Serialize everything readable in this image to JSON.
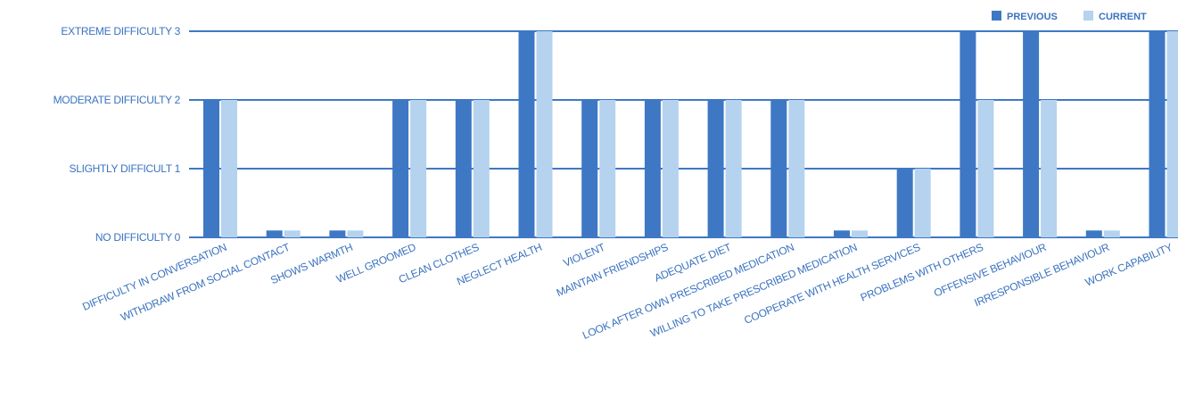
{
  "chart_data": {
    "type": "bar",
    "categories": [
      "DIFFICULTY IN CONVERSATION",
      "WITHDRAW FROM SOCIAL CONTACT",
      "SHOWS WARMTH",
      "WELL GROOMED",
      "CLEAN CLOTHES",
      "NEGLECT HEALTH",
      "VIOLENT",
      "MAINTAIN FRIENDSHIPS",
      "ADEQUATE DIET",
      "LOOK AFTER OWN PRESCRIBED MEDICATION",
      "WILLING TO TAKE PRESCRIBED MEDICATION",
      "COOPERATE WITH HEALTH SERVICES",
      "PROBLEMS WITH OTHERS",
      "OFFENSIVE BEHAVIOUR",
      "IRRESPONSIBLE BEHAVIOUR",
      "WORK CAPABILITY"
    ],
    "series": [
      {
        "name": "PREVIOUS",
        "color": "#3e78c4",
        "values": [
          2,
          0.1,
          0.1,
          2,
          2,
          3,
          2,
          2,
          2,
          2,
          0.1,
          1,
          3,
          3,
          0.1,
          3
        ]
      },
      {
        "name": "CURRENT",
        "color": "#b5d2ee",
        "values": [
          2,
          0.1,
          0.1,
          2,
          2,
          3,
          2,
          2,
          2,
          2,
          0.1,
          1,
          2,
          2,
          0.1,
          3
        ]
      }
    ],
    "y_ticks": [
      {
        "value": 0,
        "label": "NO DIFFICULTY 0"
      },
      {
        "value": 1,
        "label": "SLIGHTLY DIFFICULT 1"
      },
      {
        "value": 2,
        "label": "MODERATE DIFFICULTY 2"
      },
      {
        "value": 3,
        "label": "EXTREME DIFFICULTY 3"
      }
    ],
    "ylim": [
      0,
      3
    ],
    "grid": true,
    "legend_position": "top-right",
    "gridline_color": "#3e78c4"
  }
}
